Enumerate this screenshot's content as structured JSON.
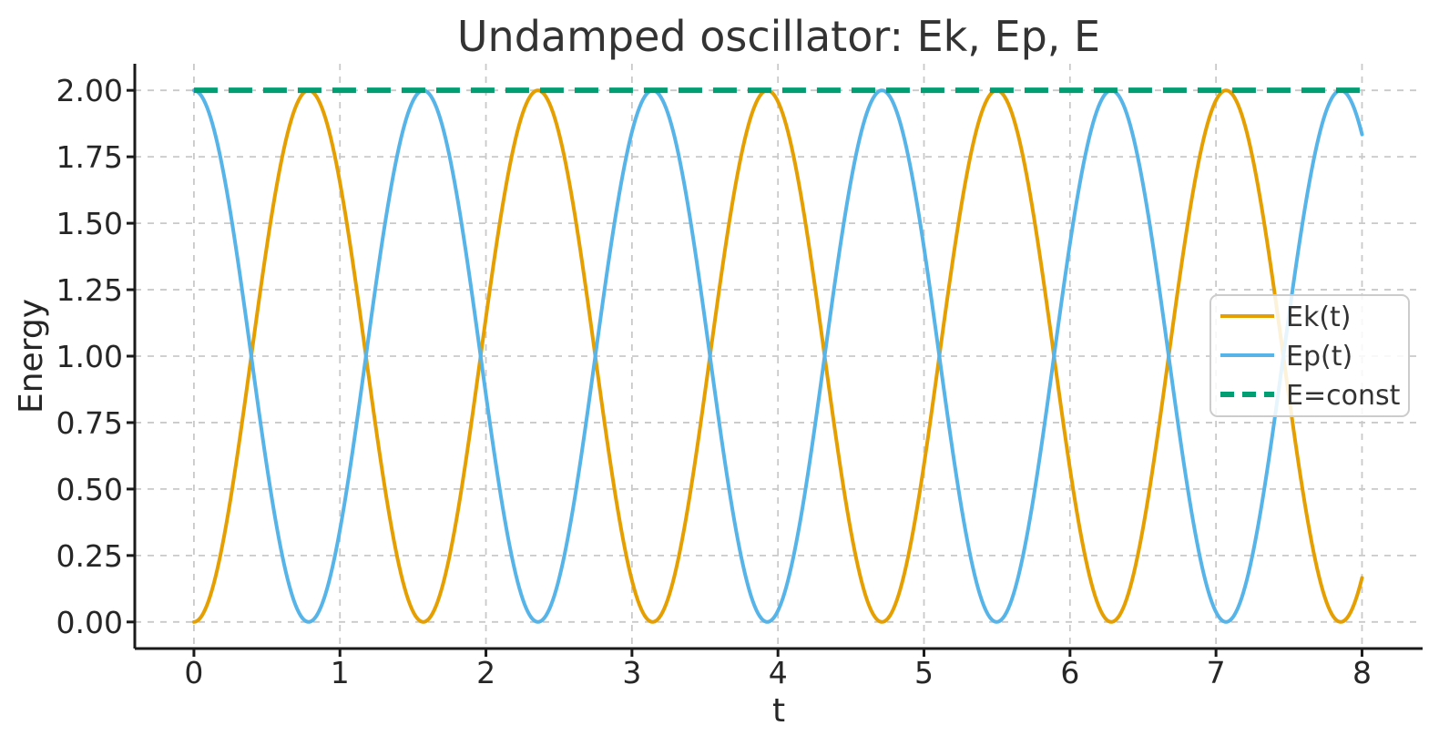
{
  "chart_data": {
    "type": "line",
    "title": "Undamped oscillator: Ek, Ep, E",
    "xlabel": "t",
    "ylabel": "Energy",
    "xlim": [
      -0.405,
      8.415
    ],
    "ylim": [
      -0.1,
      2.1
    ],
    "background": "#ffffff",
    "axes_color": "#1a1a1a",
    "text_color": "#262626",
    "grid": {
      "visible": true,
      "color": "#c9c9c9",
      "dash": [
        7,
        7
      ],
      "width": 1.8
    },
    "xticks": [
      {
        "v": 0,
        "label": "0"
      },
      {
        "v": 1,
        "label": "1"
      },
      {
        "v": 2,
        "label": "2"
      },
      {
        "v": 3,
        "label": "3"
      },
      {
        "v": 4,
        "label": "4"
      },
      {
        "v": 5,
        "label": "5"
      },
      {
        "v": 6,
        "label": "6"
      },
      {
        "v": 7,
        "label": "7"
      },
      {
        "v": 8,
        "label": "8"
      }
    ],
    "yticks": [
      {
        "v": 0.0,
        "label": "0.00"
      },
      {
        "v": 0.25,
        "label": "0.25"
      },
      {
        "v": 0.5,
        "label": "0.50"
      },
      {
        "v": 0.75,
        "label": "0.75"
      },
      {
        "v": 1.0,
        "label": "1.00"
      },
      {
        "v": 1.25,
        "label": "1.25"
      },
      {
        "v": 1.5,
        "label": "1.50"
      },
      {
        "v": 1.75,
        "label": "1.75"
      },
      {
        "v": 2.0,
        "label": "2.00"
      }
    ],
    "series": [
      {
        "id": "ek",
        "label": "Ek(t)",
        "color": "#E69F00",
        "style": "solid",
        "width": 4,
        "fn": "sin2",
        "amplitude": 2,
        "omega": 2,
        "t_range": [
          0,
          8
        ],
        "description": "Ek(t) = 2*sin^2(2t); peaks of 2.0 at t = 0.785, 2.356, 3.927, 5.498, 7.069; zeros at t = 0, 1.571, 3.142, 4.712, 6.283, 7.854; value 0.17 at t = 8"
      },
      {
        "id": "ep",
        "label": "Ep(t)",
        "color": "#56B4E9",
        "style": "solid",
        "width": 4,
        "fn": "cos2",
        "amplitude": 2,
        "omega": 2,
        "t_range": [
          0,
          8
        ],
        "description": "Ep(t) = 2*cos^2(2t); peaks of 2.0 at t = 0, 1.571, 3.142, 4.712, 6.283, 7.854; zeros at t = 0.785, 2.356, 3.927, 5.498, 7.069; value 1.83 at t = 8"
      },
      {
        "id": "e-const",
        "label": "E=const",
        "color": "#009E73",
        "style": "dashed",
        "width": 6,
        "dash": [
          26,
          12
        ],
        "fn": "const",
        "value": 2,
        "t_range": [
          0,
          8
        ],
        "description": "Total energy E = 2 (horizontal dashed line)"
      }
    ],
    "legend": {
      "position": "center-right",
      "border_color": "#cccccc",
      "background": "#ffffff",
      "background_opacity": 0.85,
      "entries": [
        "Ek(t)",
        "Ep(t)",
        "E=const"
      ]
    }
  }
}
